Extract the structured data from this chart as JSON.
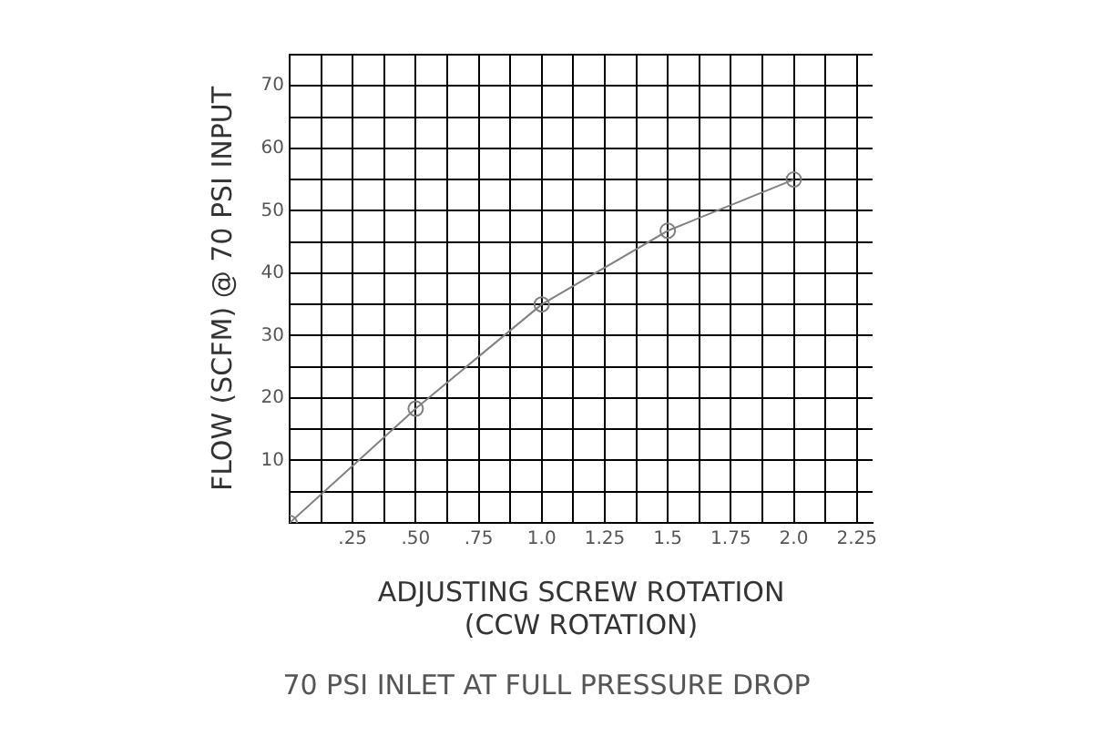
{
  "chart_data": {
    "type": "line",
    "xlabel": "ADJUSTING SCREW ROTATION\n(CCW ROTATION)",
    "ylabel": "FLOW (SCFM) @ 70 PSI INPUT",
    "annotations": [
      "70 PSI INLET AT FULL PRESSURE DROP"
    ],
    "x": [
      0,
      0.5,
      1.0,
      1.5,
      2.0
    ],
    "series": [
      {
        "color": "#808080",
        "values": [
          0,
          18.3,
          35,
          46.8,
          55
        ]
      }
    ],
    "xlim": [
      0,
      2.3125
    ],
    "xticks": [
      {
        "value": 0,
        "label": null
      },
      {
        "value": 0.125,
        "label": null
      },
      {
        "value": 0.25,
        "label": ".25"
      },
      {
        "value": 0.375,
        "label": null
      },
      {
        "value": 0.5,
        "label": ".50"
      },
      {
        "value": 0.625,
        "label": null
      },
      {
        "value": 0.75,
        "label": ".75"
      },
      {
        "value": 0.875,
        "label": null
      },
      {
        "value": 1.0,
        "label": "1.0"
      },
      {
        "value": 1.125,
        "label": null
      },
      {
        "value": 1.25,
        "label": "1.25"
      },
      {
        "value": 1.375,
        "label": null
      },
      {
        "value": 1.5,
        "label": "1.5"
      },
      {
        "value": 1.625,
        "label": null
      },
      {
        "value": 1.75,
        "label": "1.75"
      },
      {
        "value": 1.875,
        "label": null
      },
      {
        "value": 2.0,
        "label": "2.0"
      },
      {
        "value": 2.125,
        "label": null
      },
      {
        "value": 2.25,
        "label": "2.25"
      }
    ],
    "ylim": [
      0,
      75
    ],
    "yticks": [
      {
        "value": 0,
        "label": null
      },
      {
        "value": 5,
        "label": null
      },
      10,
      {
        "value": 15,
        "label": null
      },
      20,
      {
        "value": 25,
        "label": null
      },
      30,
      {
        "value": 35,
        "label": null
      },
      40,
      {
        "value": 45,
        "label": null
      },
      50,
      {
        "value": 55,
        "label": null
      },
      60,
      {
        "value": 65,
        "label": null
      },
      70,
      {
        "value": 75,
        "label": null
      }
    ],
    "grid": true,
    "legend": false,
    "marker": "circle",
    "line_style": "solid"
  }
}
